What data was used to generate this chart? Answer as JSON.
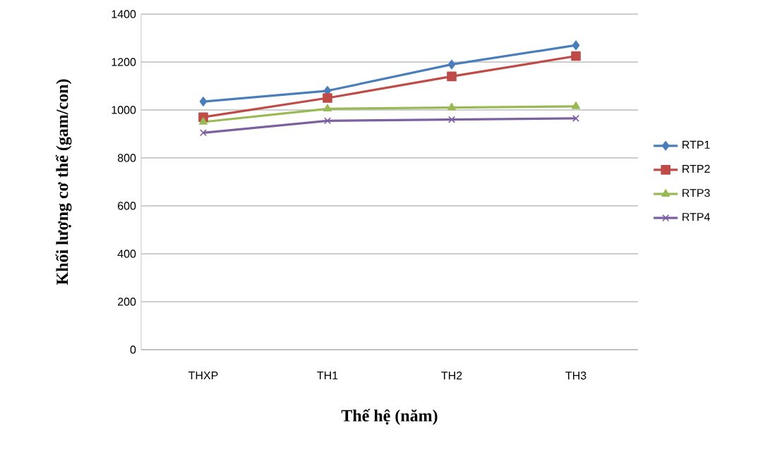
{
  "chart_data": {
    "type": "line",
    "xlabel": "Thế hệ (năm)",
    "ylabel": "Khối lượng cơ thể (gam/con)",
    "categories": [
      "THXP",
      "TH1",
      "TH2",
      "TH3"
    ],
    "ylim": [
      0,
      1400
    ],
    "yticks": [
      0,
      200,
      400,
      600,
      800,
      1000,
      1200,
      1400
    ],
    "grid": "y",
    "legend": "right",
    "series": [
      {
        "name": "RTP1",
        "color": "#4a7ebb",
        "marker": "diamond",
        "values": [
          1035,
          1080,
          1190,
          1270
        ]
      },
      {
        "name": "RTP2",
        "color": "#be4b48",
        "marker": "square",
        "values": [
          970,
          1050,
          1140,
          1225
        ]
      },
      {
        "name": "RTP3",
        "color": "#98b954",
        "marker": "triangle",
        "values": [
          950,
          1005,
          1010,
          1015
        ]
      },
      {
        "name": "RTP4",
        "color": "#7d60a0",
        "marker": "cross",
        "values": [
          905,
          955,
          960,
          965
        ]
      }
    ]
  }
}
